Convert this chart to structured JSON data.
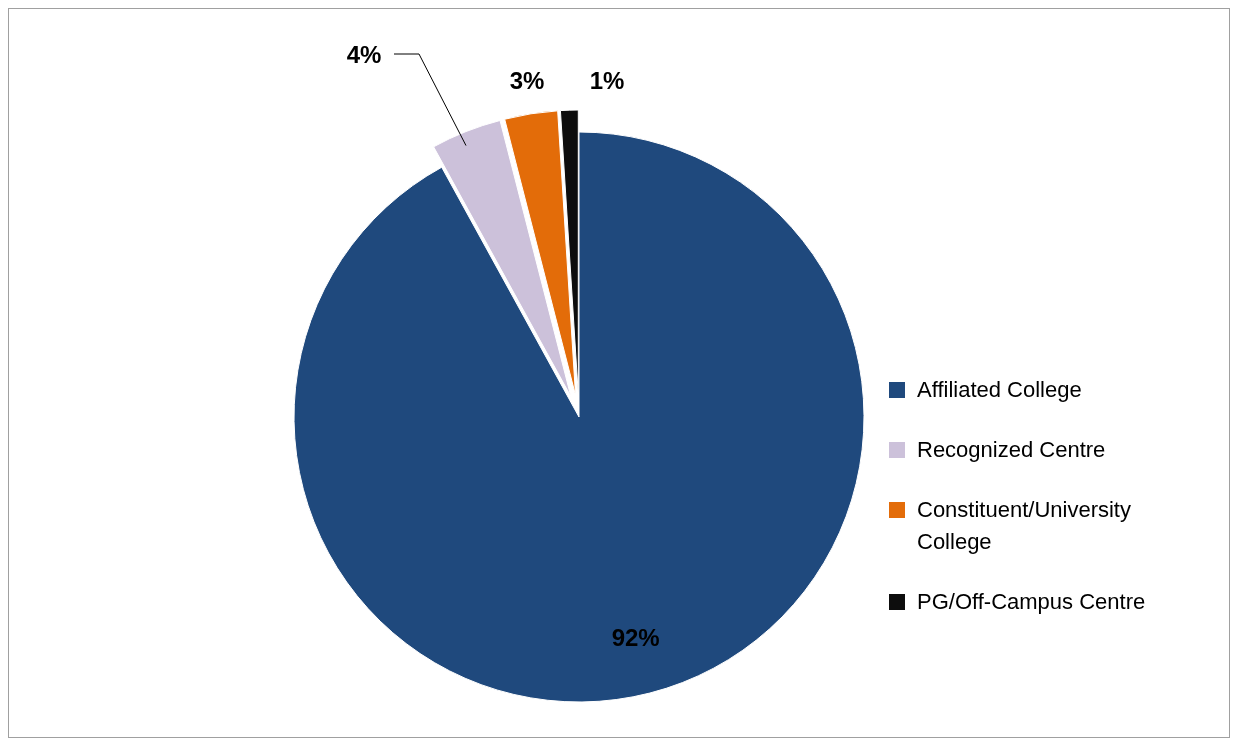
{
  "chart_data": {
    "type": "pie",
    "categories": [
      "Affiliated College",
      "Recognized Centre",
      "Constituent/University College",
      "PG/Off-Campus Centre"
    ],
    "values": [
      92,
      4,
      3,
      1
    ],
    "colors": [
      "#1f497d",
      "#ccc1da",
      "#e36c09",
      "#0d0d0d"
    ],
    "value_labels": [
      "92%",
      "4%",
      "3%",
      "1%"
    ],
    "legend": "right"
  }
}
